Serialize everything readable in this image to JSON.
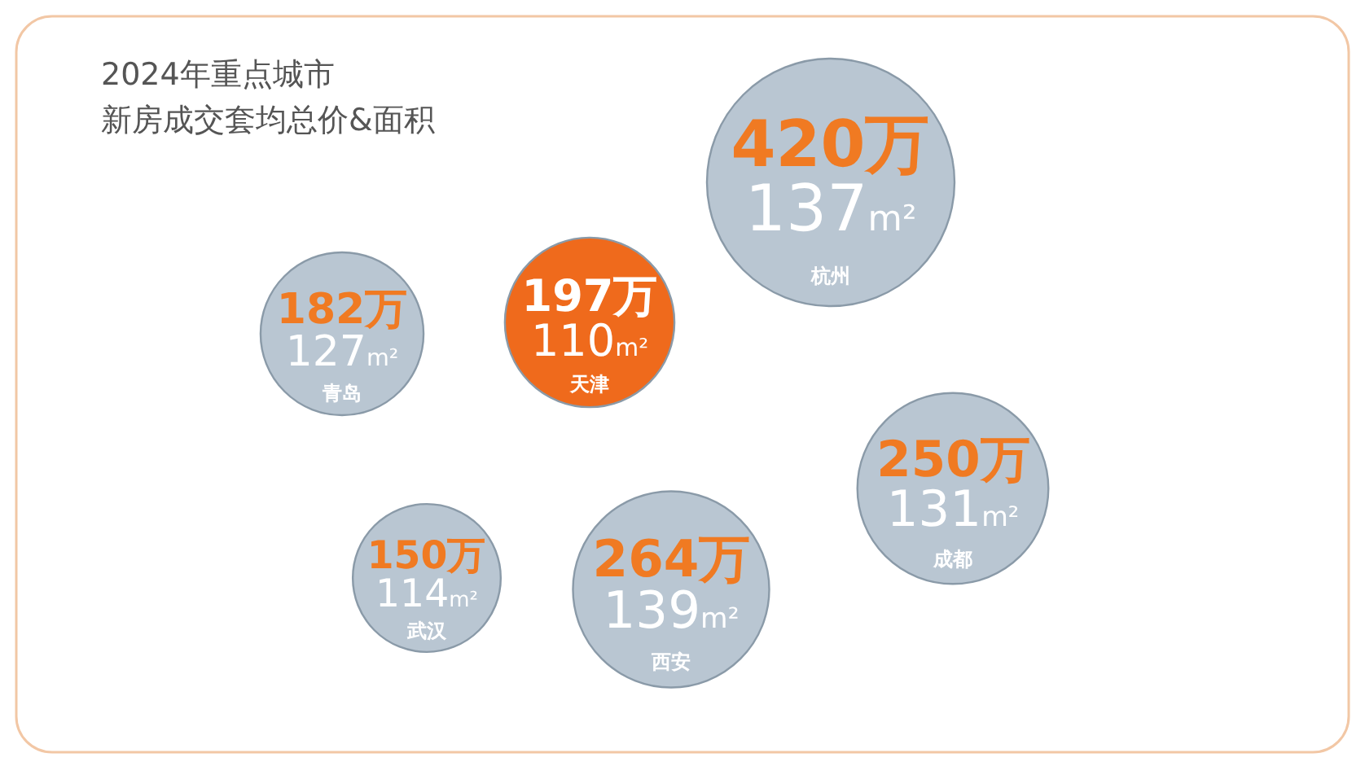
{
  "chart_data": {
    "type": "other",
    "title": "2024年重点城市",
    "subtitle": "新房成交套均总价&面积",
    "categories": [
      "青岛",
      "天津",
      "杭州",
      "成都",
      "武汉",
      "西安"
    ],
    "series": [
      {
        "values": [
          182,
          197,
          420,
          250,
          150,
          264
        ],
        "value_labels": [
          "182万",
          "197万",
          "420万",
          "250万",
          "150万",
          "264万"
        ],
        "colors": [
          "#b9c6d2",
          "#ef6a1c",
          "#b9c6d2",
          "#b9c6d2",
          "#b9c6d2",
          "#b9c6d2"
        ]
      },
      {
        "values": [
          127,
          110,
          137,
          131,
          114,
          139
        ],
        "value_labels": [
          "127m²",
          "110m²",
          "137m²",
          "131m²",
          "114m²",
          "139m²"
        ]
      }
    ]
  }
}
